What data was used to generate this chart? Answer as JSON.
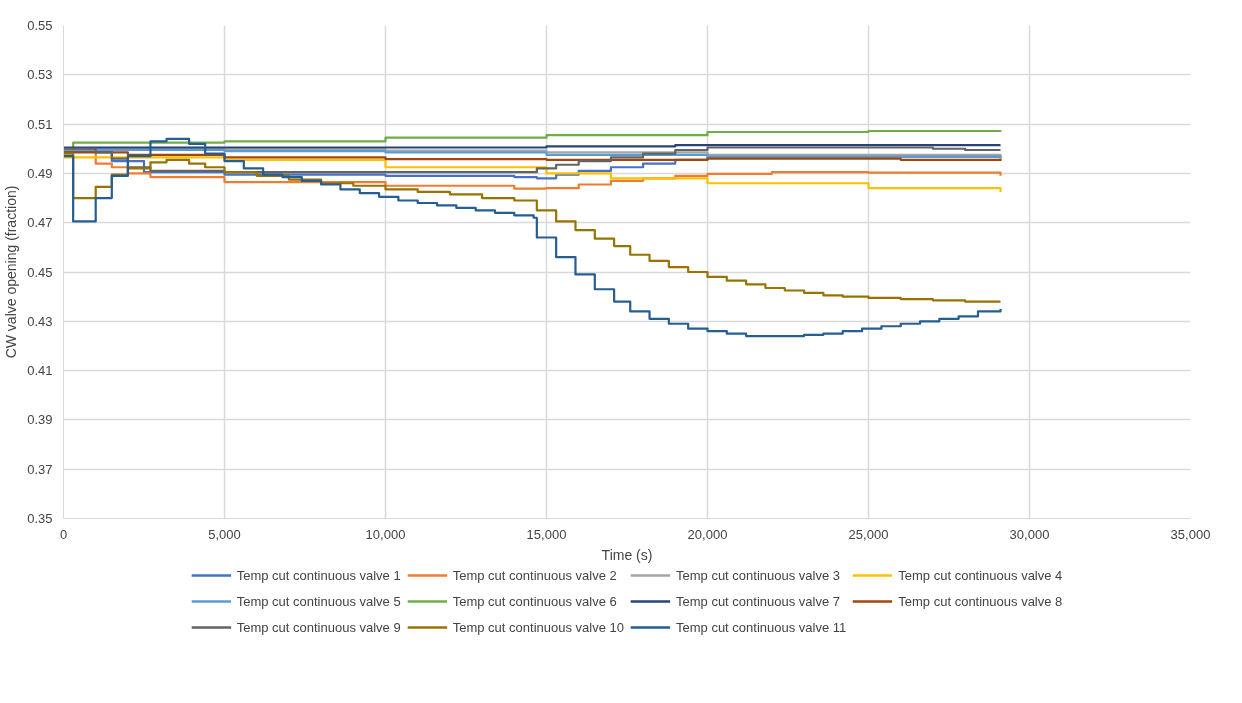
{
  "chart_data": {
    "type": "step",
    "xlabel": "Time (s)",
    "ylabel": "CW valve opening (fraction)",
    "xlim": [
      0,
      35000
    ],
    "ylim": [
      0.35,
      0.55
    ],
    "xticks": [
      0,
      {
        "value": 5000,
        "label": "5,000"
      },
      {
        "value": 10000,
        "label": "10,000"
      },
      {
        "value": 15000,
        "label": "15,000"
      },
      {
        "value": 20000,
        "label": "20,000"
      },
      {
        "value": 25000,
        "label": "25,000"
      },
      {
        "value": 30000,
        "label": "30,000"
      },
      {
        "value": 35000,
        "label": "35,000"
      }
    ],
    "yticks": [
      0.35,
      0.37,
      0.39,
      0.41,
      0.43,
      0.45,
      0.47,
      0.49,
      0.51,
      0.53,
      0.55
    ],
    "grid": true,
    "legend": "bottom",
    "line_style": "solid",
    "marker": "none",
    "series": [
      {
        "name": "Temp cut continuous valve 1",
        "color": "#4472c4",
        "x": [
          0,
          1500,
          2500,
          5000,
          10000,
          14000,
          14700,
          15300,
          16000,
          17000,
          18000,
          19000,
          20000,
          25000,
          29100
        ],
        "values": [
          0.499,
          0.495,
          0.4905,
          0.4895,
          0.489,
          0.4885,
          0.488,
          0.4895,
          0.491,
          0.4925,
          0.494,
          0.4955,
          0.4965,
          0.4968,
          0.4965
        ]
      },
      {
        "name": "Temp cut continuous valve 2",
        "color": "#ed7d31",
        "x": [
          0,
          1000,
          1500,
          2000,
          2700,
          5000,
          10000,
          14000,
          15000,
          16000,
          17000,
          18000,
          19000,
          20000,
          22000,
          25000,
          29100
        ],
        "values": [
          0.4995,
          0.494,
          0.4925,
          0.49,
          0.4885,
          0.4865,
          0.485,
          0.4838,
          0.484,
          0.4855,
          0.487,
          0.488,
          0.489,
          0.4898,
          0.4905,
          0.4903,
          0.489
        ]
      },
      {
        "name": "Temp cut continuous valve 3",
        "color": "#a5a5a5",
        "x": [
          0,
          5000,
          10000,
          15000,
          20000,
          29100
        ],
        "values": [
          0.5,
          0.4998,
          0.4992,
          0.4985,
          0.4975,
          0.4955
        ]
      },
      {
        "name": "Temp cut continuous valve 4",
        "color": "#ffc000",
        "x": [
          0,
          5000,
          10000,
          15000,
          17000,
          20000,
          25000,
          29100
        ],
        "values": [
          0.4965,
          0.4955,
          0.4925,
          0.49,
          0.488,
          0.486,
          0.484,
          0.4825
        ]
      },
      {
        "name": "Temp cut continuous valve 5",
        "color": "#5b9bd5",
        "x": [
          0,
          5000,
          10000,
          15000,
          20000,
          29100
        ],
        "values": [
          0.4995,
          0.499,
          0.4985,
          0.4975,
          0.4968,
          0.4965
        ]
      },
      {
        "name": "Temp cut continuous valve 6",
        "color": "#70ad47",
        "x": [
          0,
          300,
          5000,
          10000,
          15000,
          20000,
          25000,
          29100
        ],
        "values": [
          0.5,
          0.5025,
          0.503,
          0.5045,
          0.5055,
          0.5068,
          0.5072,
          0.5075
        ]
      },
      {
        "name": "Temp cut continuous valve 7",
        "color": "#264478",
        "x": [
          0,
          15000,
          19000,
          29100
        ],
        "values": [
          0.5005,
          0.501,
          0.5015,
          0.5015
        ]
      },
      {
        "name": "Temp cut continuous valve 8",
        "color": "#9e480e",
        "x": [
          0,
          2000,
          5000,
          10000,
          15000,
          20000,
          26000,
          29100
        ],
        "values": [
          0.4985,
          0.4975,
          0.4965,
          0.4958,
          0.4955,
          0.496,
          0.4955,
          0.495
        ]
      },
      {
        "name": "Temp cut continuous valve 9",
        "color": "#636363",
        "x": [
          0,
          1000,
          1500,
          2000,
          2700,
          5000,
          10000,
          14000,
          14700,
          15300,
          16000,
          17000,
          18000,
          19000,
          20000,
          26000,
          27000,
          28000,
          29100
        ],
        "values": [
          0.5,
          0.4985,
          0.496,
          0.4925,
          0.491,
          0.4905,
          0.4905,
          0.4905,
          0.492,
          0.4935,
          0.495,
          0.4965,
          0.498,
          0.4995,
          0.5005,
          0.5005,
          0.5,
          0.4995,
          0.4995
        ]
      },
      {
        "name": "Temp cut continuous valve 10",
        "color": "#997300",
        "x": [
          0,
          300,
          1000,
          1500,
          2000,
          2700,
          3200,
          3900,
          4400,
          5000,
          6000,
          7000,
          8000,
          9000,
          10000,
          11000,
          12000,
          13000,
          14000,
          14700,
          15300,
          15900,
          16500,
          17100,
          17600,
          18200,
          18800,
          19400,
          20000,
          20600,
          21200,
          21800,
          22400,
          23000,
          23600,
          24200,
          25000,
          26000,
          27000,
          28000,
          29100
        ],
        "values": [
          0.498,
          0.48,
          0.4845,
          0.4895,
          0.492,
          0.4945,
          0.4955,
          0.494,
          0.4925,
          0.4905,
          0.489,
          0.4875,
          0.486,
          0.485,
          0.4835,
          0.4825,
          0.4815,
          0.48,
          0.479,
          0.475,
          0.4705,
          0.467,
          0.4635,
          0.4605,
          0.457,
          0.4545,
          0.452,
          0.45,
          0.448,
          0.4465,
          0.445,
          0.4435,
          0.4425,
          0.4415,
          0.4405,
          0.44,
          0.4395,
          0.439,
          0.4385,
          0.438,
          0.438
        ]
      },
      {
        "name": "Temp cut continuous valve 11",
        "color": "#255e91",
        "x": [
          0,
          300,
          1000,
          1500,
          2000,
          2700,
          3200,
          3900,
          4400,
          5000,
          5600,
          6200,
          6800,
          7400,
          8000,
          8600,
          9200,
          9800,
          10400,
          11000,
          11600,
          12200,
          12800,
          13400,
          14000,
          14600,
          14700,
          15300,
          15900,
          16500,
          17100,
          17600,
          18200,
          18800,
          19400,
          20000,
          20600,
          21200,
          23000,
          23600,
          24200,
          24800,
          25400,
          26000,
          26600,
          27200,
          27800,
          28400,
          29100
        ],
        "values": [
          0.497,
          0.4705,
          0.48,
          0.489,
          0.497,
          0.503,
          0.504,
          0.502,
          0.498,
          0.495,
          0.492,
          0.4895,
          0.4885,
          0.487,
          0.4855,
          0.4835,
          0.482,
          0.4805,
          0.479,
          0.478,
          0.477,
          0.476,
          0.475,
          0.474,
          0.473,
          0.472,
          0.464,
          0.456,
          0.449,
          0.443,
          0.438,
          0.434,
          0.431,
          0.429,
          0.427,
          0.426,
          0.425,
          0.424,
          0.4245,
          0.425,
          0.426,
          0.427,
          0.428,
          0.429,
          0.43,
          0.431,
          0.432,
          0.434,
          0.435
        ]
      }
    ]
  }
}
